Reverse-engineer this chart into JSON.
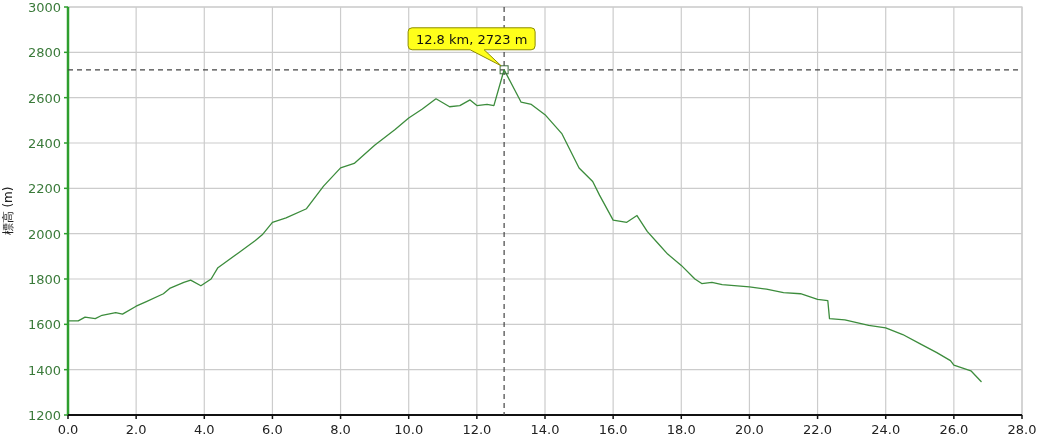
{
  "chart_data": {
    "type": "line",
    "ylabel": "標高 (m)",
    "color": "#3c8c3c",
    "line_style": "solid",
    "grid": true,
    "x": [
      0.0,
      0.3,
      0.5,
      0.8,
      1.0,
      1.4,
      1.6,
      2.0,
      2.3,
      2.8,
      3.0,
      3.4,
      3.6,
      3.9,
      4.2,
      4.4,
      5.0,
      5.5,
      5.7,
      6.0,
      6.4,
      7.0,
      7.5,
      8.0,
      8.4,
      9.0,
      9.6,
      10.0,
      10.4,
      10.8,
      11.2,
      11.5,
      11.8,
      12.0,
      12.3,
      12.5,
      12.8,
      13.3,
      13.6,
      14.0,
      14.5,
      15.0,
      15.4,
      15.6,
      16.0,
      16.4,
      16.7,
      17.0,
      17.3,
      17.6,
      18.0,
      18.4,
      18.6,
      18.9,
      19.2,
      20.0,
      20.5,
      21.0,
      21.5,
      22.0,
      22.3,
      22.35,
      22.8,
      23.5,
      24.0,
      24.5,
      25.0,
      25.5,
      25.9,
      26.0,
      26.5,
      26.8
    ],
    "values": [
      1615,
      1615,
      1632,
      1625,
      1640,
      1652,
      1645,
      1680,
      1700,
      1735,
      1760,
      1785,
      1795,
      1770,
      1800,
      1850,
      1915,
      1970,
      1995,
      2050,
      2070,
      2110,
      2210,
      2290,
      2310,
      2390,
      2460,
      2510,
      2550,
      2595,
      2560,
      2565,
      2590,
      2565,
      2570,
      2565,
      2723,
      2580,
      2570,
      2525,
      2440,
      2290,
      2230,
      2170,
      2060,
      2050,
      2080,
      2010,
      1960,
      1910,
      1860,
      1800,
      1780,
      1785,
      1775,
      1765,
      1755,
      1740,
      1735,
      1710,
      1705,
      1625,
      1620,
      1595,
      1584,
      1555,
      1515,
      1475,
      1440,
      1420,
      1395,
      1348
    ],
    "xlim": [
      0,
      28
    ],
    "ylim": [
      1200,
      3000
    ],
    "xticks": [
      {
        "value": 0,
        "label": "0.0"
      },
      {
        "value": 2,
        "label": "2.0"
      },
      {
        "value": 4,
        "label": "4.0"
      },
      {
        "value": 6,
        "label": "6.0"
      },
      {
        "value": 8,
        "label": "8.0"
      },
      {
        "value": 10,
        "label": "10.0"
      },
      {
        "value": 12,
        "label": "12.0"
      },
      {
        "value": 14,
        "label": "14.0"
      },
      {
        "value": 16,
        "label": "16.0"
      },
      {
        "value": 18,
        "label": "18.0"
      },
      {
        "value": 20,
        "label": "20.0"
      },
      {
        "value": 22,
        "label": "22.0"
      },
      {
        "value": 24,
        "label": "24.0"
      },
      {
        "value": 26,
        "label": "26.0"
      },
      {
        "value": 28,
        "label": "28.0"
      }
    ],
    "yticks": [
      1200,
      1400,
      1600,
      1800,
      2000,
      2200,
      2400,
      2600,
      2800,
      3000
    ],
    "ref_lines": [
      {
        "axis": "x",
        "value": 12.8,
        "color": "#444444",
        "line_style": "dashed"
      },
      {
        "axis": "y",
        "value": 2723,
        "color": "#444444",
        "line_style": "dashed"
      }
    ],
    "annotations": [
      {
        "text": "12.8 km, 2723 m",
        "x": 12.8,
        "y": 2723
      }
    ]
  }
}
